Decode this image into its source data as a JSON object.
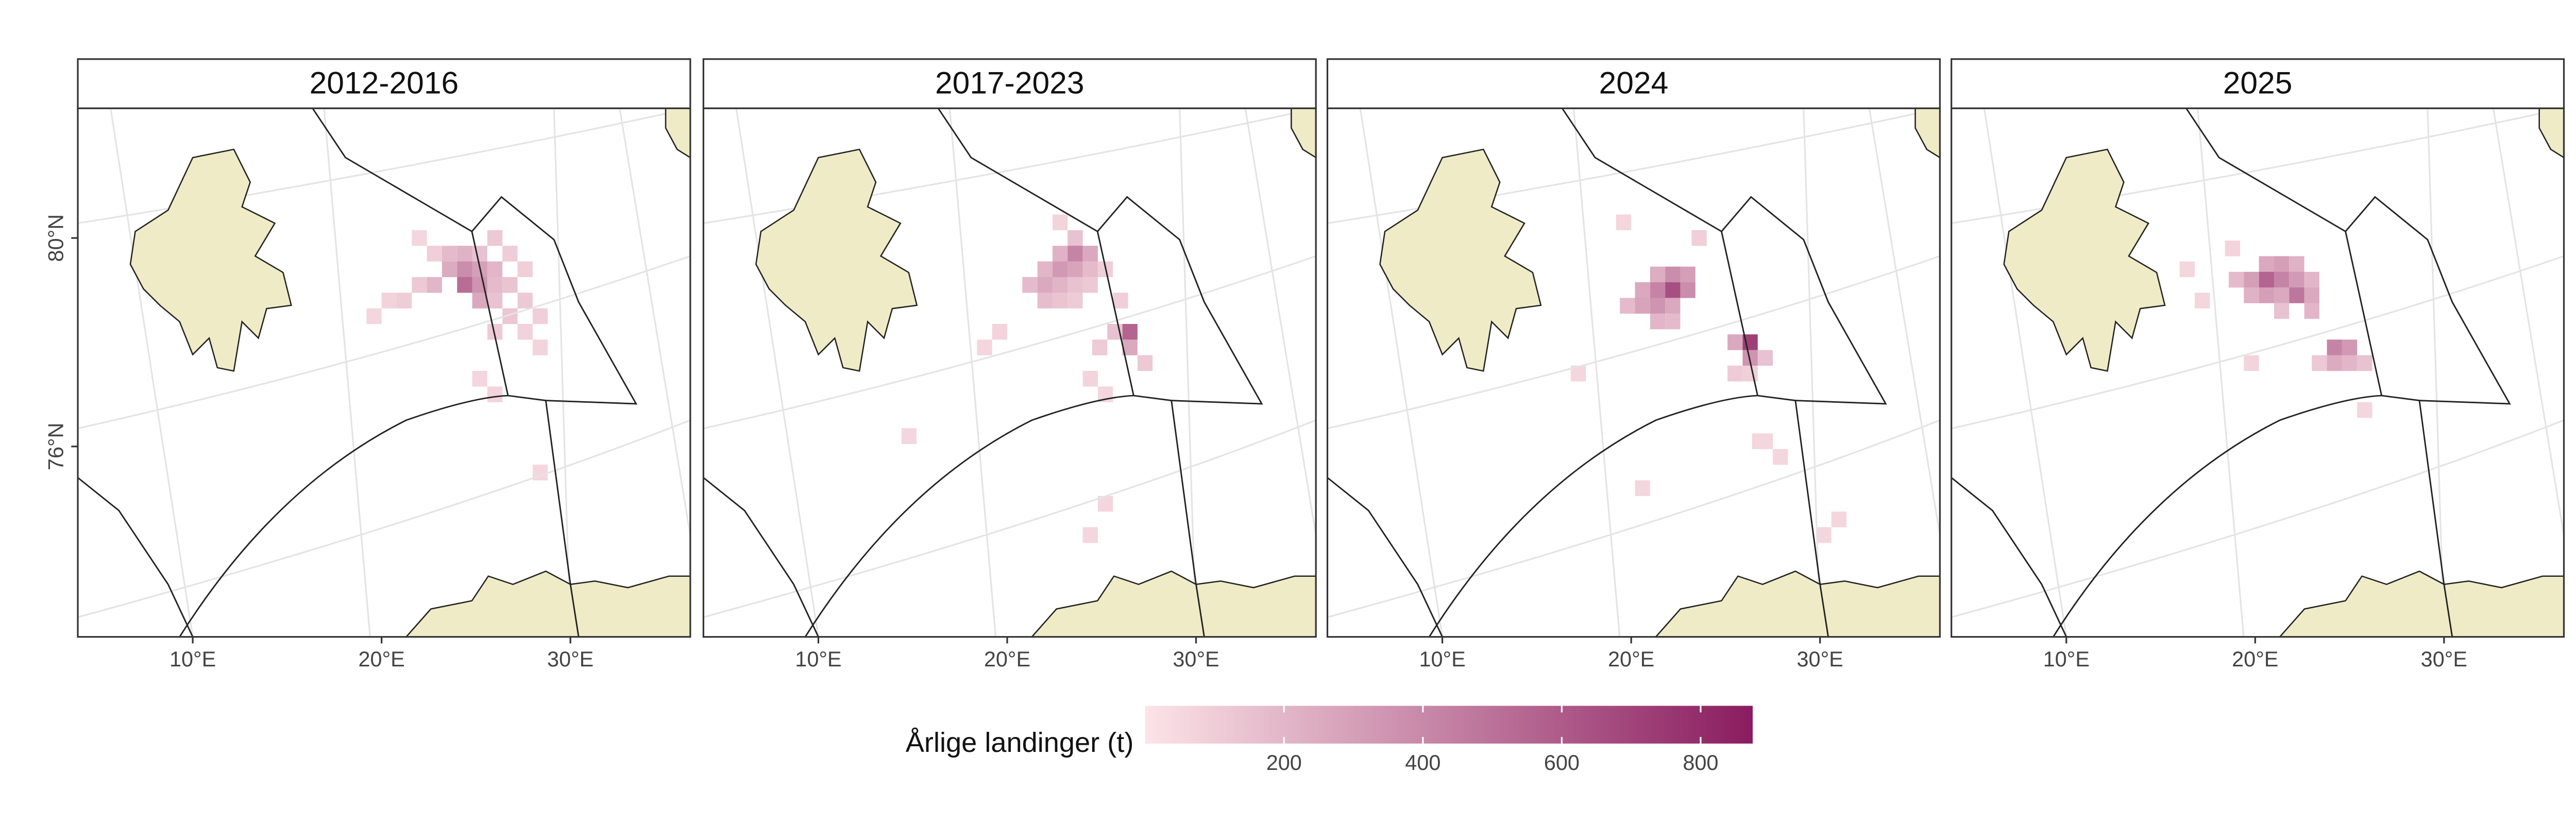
{
  "chart_data": {
    "type": "heatmap-map",
    "lon_ticks": [
      {
        "value": 10,
        "label": "10°E"
      },
      {
        "value": 20,
        "label": "20°E"
      },
      {
        "value": 30,
        "label": "30°E"
      }
    ],
    "lat_ticks": [
      {
        "value": 80,
        "label": "80°N"
      },
      {
        "value": 76,
        "label": "76°N"
      }
    ],
    "legend_title": "Årlige landinger (t)",
    "clim": [
      0,
      875
    ],
    "cticks": [
      200,
      400,
      600,
      800
    ],
    "colors": [
      "#fce4e7",
      "#8a1c5f"
    ],
    "panels": [
      {
        "title": "2012-2016",
        "cells": [
          [
            22.0,
            80.0,
            60
          ],
          [
            22.8,
            79.7,
            90
          ],
          [
            23.6,
            79.7,
            180
          ],
          [
            24.4,
            79.7,
            220
          ],
          [
            25.2,
            79.7,
            150
          ],
          [
            26.0,
            80.0,
            120
          ],
          [
            26.8,
            79.7,
            100
          ],
          [
            23.6,
            79.4,
            250
          ],
          [
            24.4,
            79.4,
            380
          ],
          [
            25.2,
            79.4,
            300
          ],
          [
            26.0,
            79.4,
            200
          ],
          [
            27.6,
            79.4,
            90
          ],
          [
            22.0,
            79.1,
            120
          ],
          [
            22.8,
            79.1,
            200
          ],
          [
            24.4,
            79.1,
            520
          ],
          [
            25.2,
            79.1,
            350
          ],
          [
            26.0,
            79.1,
            180
          ],
          [
            26.8,
            79.1,
            140
          ],
          [
            20.4,
            78.8,
            80
          ],
          [
            21.2,
            78.8,
            100
          ],
          [
            25.2,
            78.8,
            260
          ],
          [
            26.0,
            78.8,
            150
          ],
          [
            27.6,
            78.8,
            120
          ],
          [
            19.6,
            78.5,
            60
          ],
          [
            26.8,
            78.5,
            130
          ],
          [
            28.4,
            78.5,
            90
          ],
          [
            26.0,
            78.2,
            110
          ],
          [
            27.6,
            78.2,
            80
          ],
          [
            28.4,
            77.9,
            70
          ],
          [
            25.2,
            77.3,
            60
          ],
          [
            26.0,
            77.0,
            70
          ],
          [
            28.4,
            75.5,
            60
          ]
        ]
      },
      {
        "title": "2017-2023",
        "cells": [
          [
            22.8,
            80.3,
            70
          ],
          [
            23.6,
            80.0,
            150
          ],
          [
            22.8,
            79.7,
            220
          ],
          [
            23.6,
            79.7,
            420
          ],
          [
            24.4,
            79.7,
            260
          ],
          [
            22.0,
            79.4,
            200
          ],
          [
            22.8,
            79.4,
            330
          ],
          [
            23.6,
            79.4,
            280
          ],
          [
            24.4,
            79.4,
            180
          ],
          [
            25.2,
            79.4,
            90
          ],
          [
            21.2,
            79.1,
            180
          ],
          [
            22.0,
            79.1,
            260
          ],
          [
            22.8,
            79.1,
            210
          ],
          [
            23.6,
            79.1,
            150
          ],
          [
            24.4,
            79.1,
            120
          ],
          [
            22.0,
            78.8,
            170
          ],
          [
            22.8,
            78.8,
            140
          ],
          [
            23.6,
            78.8,
            110
          ],
          [
            26.0,
            78.8,
            90
          ],
          [
            26.5,
            78.2,
            560
          ],
          [
            25.7,
            78.2,
            150
          ],
          [
            24.9,
            77.9,
            110
          ],
          [
            26.5,
            77.9,
            260
          ],
          [
            27.3,
            77.6,
            120
          ],
          [
            19.6,
            78.2,
            70
          ],
          [
            18.8,
            77.9,
            60
          ],
          [
            24.4,
            77.3,
            70
          ],
          [
            25.2,
            77.0,
            60
          ],
          [
            14.8,
            76.2,
            60
          ],
          [
            25.2,
            74.9,
            60
          ],
          [
            24.4,
            74.3,
            60
          ]
        ]
      },
      {
        "title": "2024",
        "cells": [
          [
            23.6,
            80.0,
            90
          ],
          [
            19.6,
            80.3,
            60
          ],
          [
            21.4,
            79.3,
            240
          ],
          [
            22.2,
            79.3,
            380
          ],
          [
            23.0,
            79.3,
            300
          ],
          [
            20.6,
            79.0,
            260
          ],
          [
            21.4,
            79.0,
            420
          ],
          [
            22.2,
            79.0,
            650
          ],
          [
            23.0,
            79.0,
            380
          ],
          [
            19.8,
            78.7,
            180
          ],
          [
            20.6,
            78.7,
            280
          ],
          [
            21.4,
            78.7,
            350
          ],
          [
            22.2,
            78.7,
            260
          ],
          [
            21.4,
            78.4,
            200
          ],
          [
            22.2,
            78.4,
            180
          ],
          [
            26.3,
            78.0,
            720
          ],
          [
            25.5,
            78.0,
            260
          ],
          [
            26.3,
            77.7,
            350
          ],
          [
            27.1,
            77.7,
            150
          ],
          [
            25.5,
            77.4,
            110
          ],
          [
            26.3,
            77.4,
            90
          ],
          [
            27.1,
            76.1,
            60
          ],
          [
            27.9,
            75.8,
            60
          ],
          [
            20.6,
            75.2,
            60
          ],
          [
            31.0,
            74.6,
            60
          ],
          [
            30.2,
            74.3,
            60
          ],
          [
            17.2,
            77.4,
            60
          ],
          [
            26.8,
            76.1,
            60
          ]
        ]
      },
      {
        "title": "2025",
        "cells": [
          [
            18.8,
            79.8,
            70
          ],
          [
            20.6,
            79.5,
            260
          ],
          [
            21.4,
            79.5,
            300
          ],
          [
            22.2,
            79.5,
            220
          ],
          [
            19.0,
            79.2,
            180
          ],
          [
            19.8,
            79.2,
            300
          ],
          [
            20.6,
            79.2,
            560
          ],
          [
            21.4,
            79.2,
            420
          ],
          [
            22.2,
            79.2,
            320
          ],
          [
            23.0,
            79.2,
            200
          ],
          [
            19.8,
            78.9,
            220
          ],
          [
            20.6,
            78.9,
            300
          ],
          [
            21.4,
            78.9,
            260
          ],
          [
            22.2,
            78.9,
            480
          ],
          [
            23.0,
            78.9,
            260
          ],
          [
            21.4,
            78.6,
            150
          ],
          [
            23.0,
            78.6,
            200
          ],
          [
            24.2,
            77.9,
            420
          ],
          [
            25.0,
            77.9,
            330
          ],
          [
            24.2,
            77.6,
            250
          ],
          [
            25.0,
            77.6,
            200
          ],
          [
            25.8,
            77.6,
            150
          ],
          [
            23.4,
            77.6,
            120
          ],
          [
            17.2,
            78.8,
            60
          ],
          [
            19.8,
            77.6,
            70
          ],
          [
            25.8,
            76.7,
            60
          ],
          [
            16.4,
            79.4,
            60
          ]
        ]
      }
    ]
  }
}
